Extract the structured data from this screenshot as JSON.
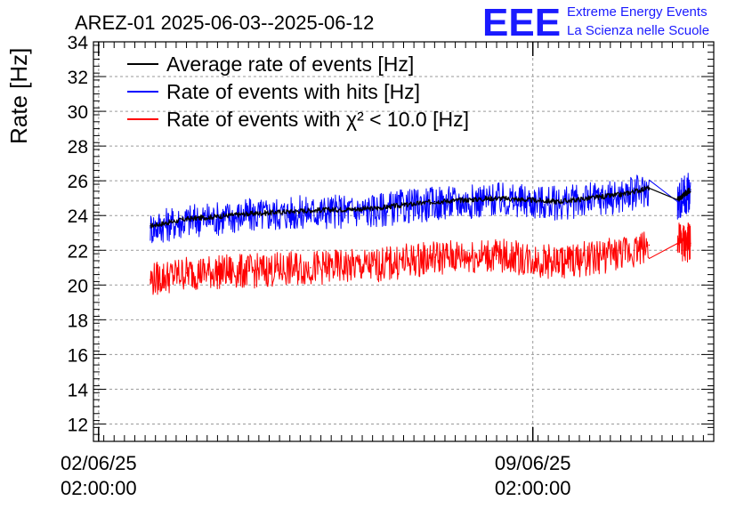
{
  "chart_data": {
    "type": "line",
    "title": "AREZ-01 2025-06-03--2025-06-12",
    "ylabel": "Rate [Hz]",
    "xlabel": "",
    "ylim": [
      11,
      34
    ],
    "yticks": [
      12,
      14,
      16,
      18,
      20,
      22,
      24,
      26,
      28,
      30,
      32,
      34
    ],
    "x_range": [
      "2025-06-02 00:00",
      "2025-06-12 00:00"
    ],
    "x_ticks": [
      {
        "x": "2025-06-02 02:00",
        "line1": "02/06/25",
        "line2": "02:00:00"
      },
      {
        "x": "2025-06-09 02:00",
        "line1": "09/06/25",
        "line2": "02:00:00"
      }
    ],
    "grid": true,
    "legend_position": "top-left",
    "logo": {
      "mark": "EEE",
      "line1": "Extreme Energy Events",
      "line2": "La Scienza nelle Scuole",
      "color": "#1a1aff"
    },
    "series": [
      {
        "name": "Average rate of events [Hz]",
        "color": "#000000",
        "x": [
          "2025-06-02 22:00",
          "2025-06-03 12:00",
          "2025-06-04 12:00",
          "2025-06-05 12:00",
          "2025-06-06 12:00",
          "2025-06-07 12:00",
          "2025-06-08 12:00",
          "2025-06-09 12:00",
          "2025-06-10 12:00",
          "2025-06-10 23:00",
          "2025-06-11 10:00",
          "2025-06-11 15:00"
        ],
        "y": [
          23.4,
          23.8,
          24.1,
          24.3,
          24.4,
          24.8,
          25.0,
          24.8,
          25.2,
          25.6,
          24.9,
          25.5
        ]
      },
      {
        "name": "Rate of events with hits [Hz]",
        "color": "#0000ff",
        "x": [
          "2025-06-02 22:00",
          "2025-06-03 12:00",
          "2025-06-04 12:00",
          "2025-06-05 12:00",
          "2025-06-06 12:00",
          "2025-06-07 12:00",
          "2025-06-08 12:00",
          "2025-06-09 12:00",
          "2025-06-10 12:00",
          "2025-06-10 23:00",
          "2025-06-11 10:00",
          "2025-06-11 15:00"
        ],
        "y": [
          23.3,
          23.7,
          24.0,
          24.2,
          24.3,
          24.7,
          24.9,
          24.7,
          25.1,
          25.5,
          24.8,
          25.4
        ]
      },
      {
        "name": "Rate of events with χ² < 10.0 [Hz]",
        "color": "#ff0000",
        "x": [
          "2025-06-02 22:00",
          "2025-06-03 12:00",
          "2025-06-04 12:00",
          "2025-06-05 12:00",
          "2025-06-06 12:00",
          "2025-06-07 12:00",
          "2025-06-08 12:00",
          "2025-06-09 12:00",
          "2025-06-10 12:00",
          "2025-06-10 23:00",
          "2025-06-11 10:00",
          "2025-06-11 15:00"
        ],
        "y": [
          20.3,
          20.7,
          20.8,
          21.0,
          21.1,
          21.6,
          21.7,
          21.3,
          21.8,
          22.3,
          22.4,
          22.4
        ]
      }
    ]
  }
}
